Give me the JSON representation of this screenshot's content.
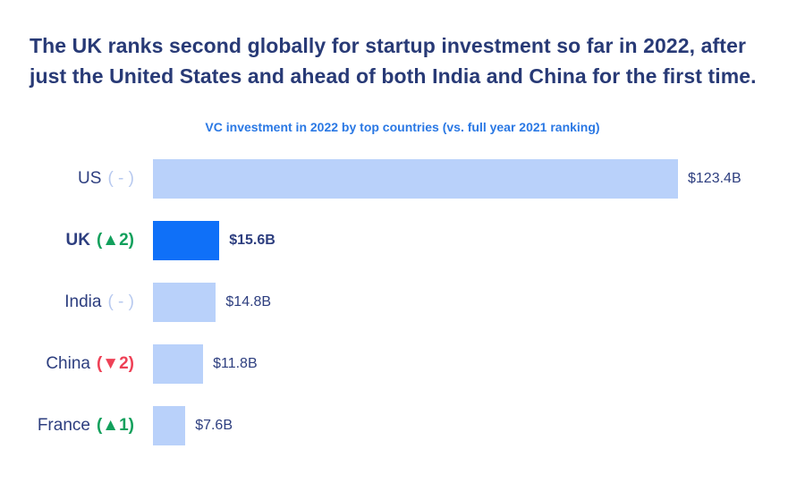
{
  "title": "The UK ranks second globally for startup investment so far in 2022, after just the United States and ahead of both India and China for the first time.",
  "chart_data": {
    "type": "bar",
    "orientation": "horizontal",
    "title": "VC investment in 2022 by top countries (vs. full year 2021 ranking)",
    "unit": "USD billions",
    "categories": [
      "US",
      "UK",
      "India",
      "China",
      "France"
    ],
    "values": [
      123.4,
      15.6,
      14.8,
      11.8,
      7.6
    ],
    "xlim": [
      0,
      123.4
    ],
    "grid": false,
    "legend": false,
    "rows": [
      {
        "country": "US",
        "rank_change": "( - )",
        "change_dir": "none",
        "value": 123.4,
        "value_label": "$123.4B",
        "highlight": false
      },
      {
        "country": "UK",
        "rank_change": "(▲2)",
        "change_dir": "up",
        "value": 15.6,
        "value_label": "$15.6B",
        "highlight": true
      },
      {
        "country": "India",
        "rank_change": "( - )",
        "change_dir": "none",
        "value": 14.8,
        "value_label": "$14.8B",
        "highlight": false
      },
      {
        "country": "China",
        "rank_change": "(▼2)",
        "change_dir": "down",
        "value": 11.8,
        "value_label": "$11.8B",
        "highlight": false
      },
      {
        "country": "France",
        "rank_change": "(▲1)",
        "change_dir": "up",
        "value": 7.6,
        "value_label": "$7.6B",
        "highlight": false
      }
    ]
  },
  "colors": {
    "title_navy": "#283a76",
    "label_navy": "#2d3e7f",
    "subtitle_blue": "#2a78e4",
    "bar_light": "#b9d1fa",
    "bar_highlight": "#0f70f8",
    "change_up": "#12a05c",
    "change_down": "#ee4156",
    "change_none": "#b7c9ef"
  }
}
